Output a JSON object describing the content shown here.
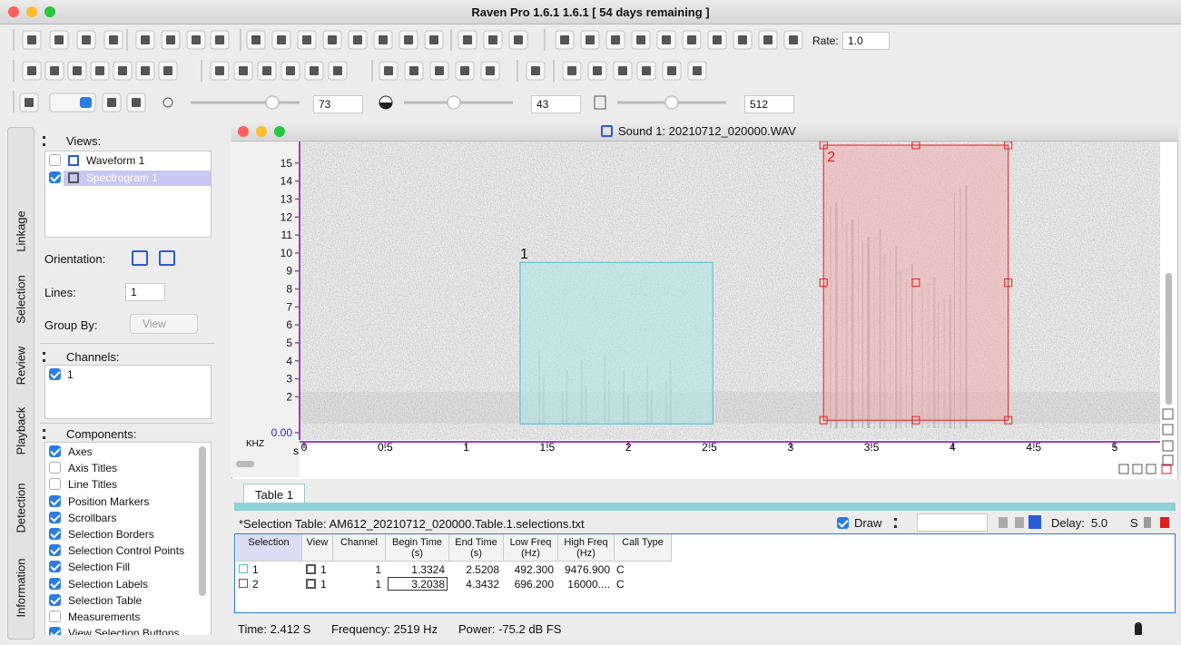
{
  "window": {
    "title": "Raven Pro 1.6.1 1.6.1  [ 54 days remaining ]"
  },
  "toolbar": {
    "rate_label": "Rate:",
    "rate": "1.0",
    "brightness": "73",
    "contrast": "43",
    "resolution": "512"
  },
  "side_tabs": [
    "Linkage",
    "Selection",
    "Review",
    "Playback",
    "Detection",
    "Information"
  ],
  "views": {
    "title": "Views:",
    "items": [
      {
        "label": "Waveform 1",
        "checked": false
      },
      {
        "label": "Spectrogram 1",
        "checked": true
      }
    ],
    "orientation_label": "Orientation:",
    "lines_label": "Lines:",
    "lines": "1",
    "group_by_label": "Group By:",
    "group_by": "View"
  },
  "channels": {
    "title": "Channels:",
    "items": [
      {
        "label": "1",
        "checked": true
      }
    ]
  },
  "components": {
    "title": "Components:",
    "items": [
      {
        "label": "Axes",
        "checked": true
      },
      {
        "label": "Axis Titles",
        "checked": false
      },
      {
        "label": "Line Titles",
        "checked": false
      },
      {
        "label": "Position Markers",
        "checked": true
      },
      {
        "label": "Scrollbars",
        "checked": true
      },
      {
        "label": "Selection Borders",
        "checked": true
      },
      {
        "label": "Selection Control Points",
        "checked": true
      },
      {
        "label": "Selection Fill",
        "checked": true
      },
      {
        "label": "Selection Labels",
        "checked": true
      },
      {
        "label": "Selection Table",
        "checked": true
      },
      {
        "label": "Measurements",
        "checked": false
      },
      {
        "label": "View Selection Buttons",
        "checked": true
      }
    ]
  },
  "sound_window": {
    "title": "Sound 1: 20210712_020000.WAV"
  },
  "spectrogram": {
    "y_unit": "KHZ",
    "x_unit": "s",
    "ylim": [
      0,
      16
    ],
    "yticks": [
      {
        "value": 0,
        "label": "0.00"
      },
      2,
      3,
      4,
      5,
      6,
      7,
      8,
      9,
      10,
      11,
      12,
      13,
      14,
      15
    ],
    "xlim": [
      0,
      5.28
    ],
    "xticks": [
      0,
      0.5,
      1,
      1.5,
      2,
      2.5,
      3,
      3.5,
      4,
      4.5,
      5
    ]
  },
  "selection_table": {
    "tab": "Table 1",
    "title": "*Selection Table: AM612_20210712_020000.Table.1.selections.txt",
    "draw_label": "Draw",
    "delay_label": "Delay:",
    "delay": "5.0",
    "delay_unit": "S",
    "columns": [
      [
        "Selection"
      ],
      [
        "View"
      ],
      [
        "Channel"
      ],
      [
        "Begin Time",
        "(s)"
      ],
      [
        "End Time",
        "(s)"
      ],
      [
        "Low Freq",
        "(Hz)"
      ],
      [
        "High Freq",
        "(Hz)"
      ],
      [
        "Call Type"
      ]
    ],
    "rows": [
      [
        "1",
        "1",
        "1",
        "1.3324",
        "2.5208",
        "492.300",
        "9476.900",
        "C"
      ],
      [
        "2",
        "1",
        "1",
        "3.2038",
        "4.3432",
        "696.200",
        "16000....",
        "C"
      ]
    ]
  },
  "status": {
    "time": "Time: 2.412 S",
    "frequency": "Frequency: 2519 Hz",
    "power": "Power: -75.2 dB FS"
  }
}
